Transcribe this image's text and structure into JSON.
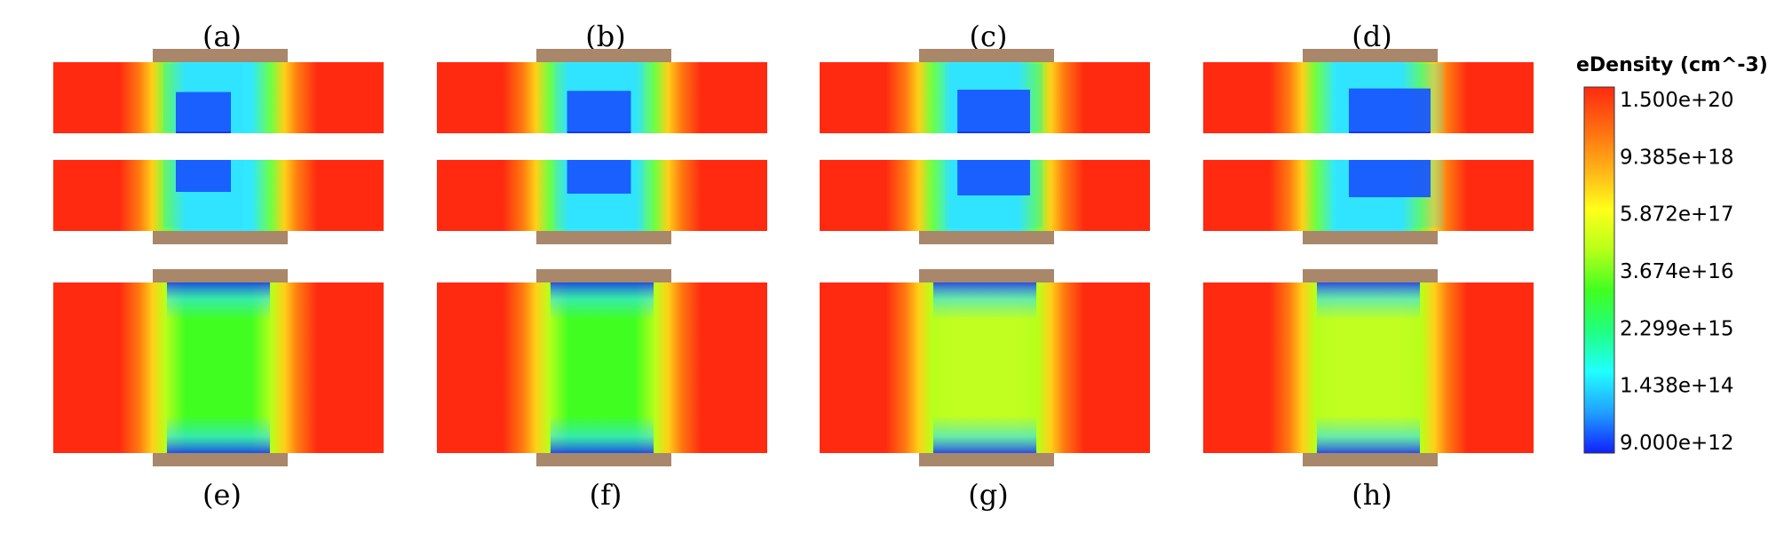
{
  "figure": {
    "panels": [
      {
        "label": "(a)",
        "kind": "double",
        "severity": 0.0
      },
      {
        "label": "(b)",
        "kind": "double",
        "severity": 0.33
      },
      {
        "label": "(c)",
        "kind": "double",
        "severity": 0.66
      },
      {
        "label": "(d)",
        "kind": "double",
        "severity": 1.0
      },
      {
        "label": "(e)",
        "kind": "single",
        "severity": 0.0
      },
      {
        "label": "(f)",
        "kind": "single",
        "severity": 0.33
      },
      {
        "label": "(g)",
        "kind": "single",
        "severity": 0.66
      },
      {
        "label": "(h)",
        "kind": "single",
        "severity": 1.0
      }
    ]
  },
  "colorbar": {
    "title": "eDensity (cm^-3)",
    "ticks": [
      "1.500e+20",
      "9.385e+18",
      "5.872e+17",
      "3.674e+16",
      "2.299e+15",
      "1.438e+14",
      "9.000e+12"
    ],
    "colors_top_to_bottom": [
      "#ff2a10",
      "#ff6a10",
      "#ffb018",
      "#ffff1a",
      "#b8ff1a",
      "#40ff20",
      "#20ff80",
      "#20ffff",
      "#20a0ff",
      "#1020ff"
    ]
  },
  "colors": {
    "gate_contact": "#a8876b",
    "source_drain": "#ff2a10"
  }
}
